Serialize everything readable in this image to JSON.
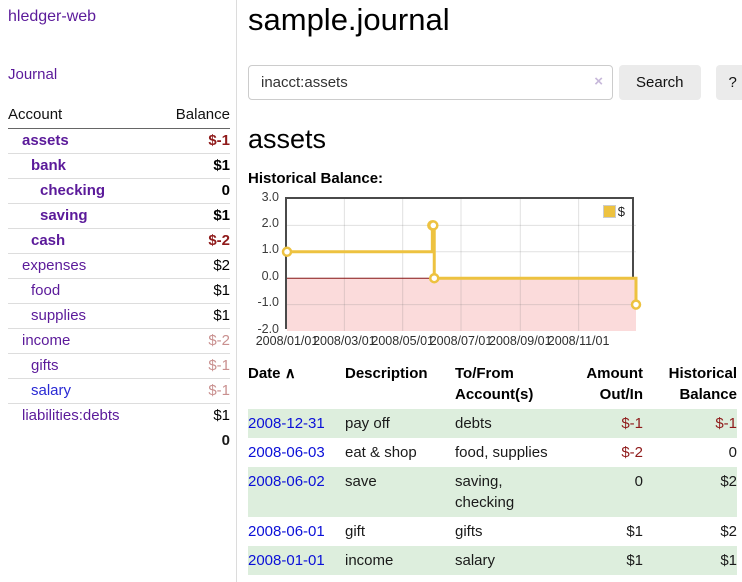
{
  "app": {
    "brand": "hledger-web",
    "journal_link": "Journal"
  },
  "sidebar": {
    "account_header": "Account",
    "balance_header": "Balance",
    "accounts": [
      {
        "name": "assets",
        "balance": "$-1",
        "depth": 1,
        "bold": true
      },
      {
        "name": "bank",
        "balance": "$1",
        "depth": 2,
        "bold": true
      },
      {
        "name": "checking",
        "balance": "0",
        "depth": 3,
        "bold": true
      },
      {
        "name": "saving",
        "balance": "$1",
        "depth": 3,
        "bold": true
      },
      {
        "name": "cash",
        "balance": "$-2",
        "depth": 2,
        "bold": true
      },
      {
        "name": "expenses",
        "balance": "$2",
        "depth": 1,
        "bold": false
      },
      {
        "name": "food",
        "balance": "$1",
        "depth": 2,
        "bold": false
      },
      {
        "name": "supplies",
        "balance": "$1",
        "depth": 2,
        "bold": false
      },
      {
        "name": "income",
        "balance": "$-2",
        "depth": 1,
        "bold": false
      },
      {
        "name": "gifts",
        "balance": "$-1",
        "depth": 2,
        "bold": false
      },
      {
        "name": "salary",
        "balance": "$-1",
        "depth": 2,
        "bold": false,
        "link_color": "#2a2ad4"
      },
      {
        "name": "liabilities:debts",
        "balance": "$1",
        "depth": 1,
        "bold": false
      }
    ],
    "total": "0"
  },
  "header": {
    "title": "sample.journal"
  },
  "search": {
    "value": "inacct:assets",
    "clear_icon": "×",
    "search_button": "Search",
    "help_button": "?"
  },
  "account_view": {
    "title": "assets",
    "section_label": "Historical Balance:"
  },
  "chart_data": {
    "type": "line",
    "step": true,
    "title": "Historical Balance:",
    "series": [
      {
        "name": "$",
        "color": "#EDC240",
        "points": [
          [
            "2008-01-01",
            1
          ],
          [
            "2008-06-01",
            2
          ],
          [
            "2008-06-02",
            2
          ],
          [
            "2008-06-03",
            0
          ],
          [
            "2008-12-31",
            -1
          ]
        ]
      }
    ],
    "x_range": [
      "2008-01-01",
      "2008-12-31"
    ],
    "ylim": [
      -2,
      3
    ],
    "y_ticks": [
      "3.0",
      "2.0",
      "1.0",
      "0.0",
      "-1.0",
      "-2.0"
    ],
    "y_tick_values": [
      3,
      2,
      1,
      0,
      -1,
      -2
    ],
    "x_ticks": [
      "2008/01/01",
      "2008/03/01",
      "2008/05/01",
      "2008/07/01",
      "2008/09/01",
      "2008/11/01"
    ],
    "x_tick_dates": [
      "2008-01-01",
      "2008-03-01",
      "2008-05-01",
      "2008-07-01",
      "2008-09-01",
      "2008-11-01"
    ],
    "grid": true,
    "legend_position": "top-right",
    "negative_region_color": "#fbdbdb",
    "zero_line_color": "#8b1a1a",
    "marker_fill": "#ffffff"
  },
  "register": {
    "sort_icon": "∧",
    "columns": [
      {
        "line1": "Date",
        "line2": "",
        "align": "left",
        "sorted": true
      },
      {
        "line1": "Description",
        "line2": "",
        "align": "left"
      },
      {
        "line1": "To/From",
        "line2": "Account(s)",
        "align": "left"
      },
      {
        "line1": "Amount",
        "line2": "Out/In",
        "align": "right"
      },
      {
        "line1": "Historical",
        "line2": "Balance",
        "align": "right"
      }
    ],
    "rows": [
      {
        "date": "2008-12-31",
        "description": "pay off",
        "accounts": "debts",
        "amount": "$-1",
        "balance": "$-1"
      },
      {
        "date": "2008-06-03",
        "description": "eat & shop",
        "accounts": "food, supplies",
        "amount": "$-2",
        "balance": "0"
      },
      {
        "date": "2008-06-02",
        "description": "save",
        "accounts": "saving, checking",
        "amount": "0",
        "balance": "$2"
      },
      {
        "date": "2008-06-01",
        "description": "gift",
        "accounts": "gifts",
        "amount": "$1",
        "balance": "$2"
      },
      {
        "date": "2008-01-01",
        "description": "income",
        "accounts": "salary",
        "amount": "$1",
        "balance": "$1"
      }
    ]
  },
  "colors": {
    "accent_purple": "#5b1a9a",
    "link_blue": "#0b10d8",
    "negative_strong": "#8f1a1a",
    "negative_weak": "#c9908f",
    "row_stripe_green": "#ddeedd",
    "series_yellow": "#EDC240"
  }
}
